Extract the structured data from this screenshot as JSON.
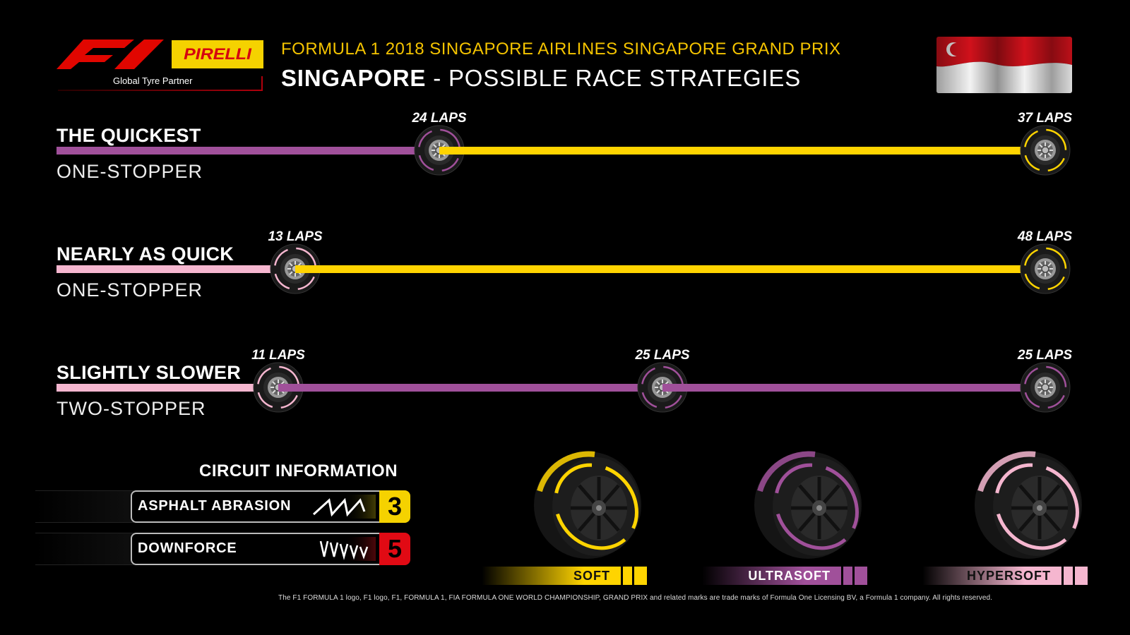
{
  "header": {
    "f1_logo": "f1-logo",
    "sponsor_logo_text": "PIRELLI",
    "partner_text": "Global Tyre Partner",
    "event_title": "FORMULA 1 2018 SINGAPORE AIRLINES SINGAPORE GRAND PRIX",
    "page_title_bold": "SINGAPORE",
    "page_title_rest": " - POSSIBLE RACE STRATEGIES",
    "flag": "singapore-flag"
  },
  "colors": {
    "soft": "#ffd400",
    "ultrasoft": "#a0509a",
    "hypersoft": "#f5b6cf",
    "abrasion_score": "#f5d200",
    "downforce_score": "#e10a14"
  },
  "strategies": [
    {
      "name": "THE QUICKEST",
      "type": "ONE-STOPPER",
      "stints": [
        {
          "compound": "ultrasoft",
          "laps": "24 LAPS"
        },
        {
          "compound": "soft",
          "laps": "37 LAPS"
        }
      ]
    },
    {
      "name": "NEARLY AS QUICK",
      "type": "ONE-STOPPER",
      "stints": [
        {
          "compound": "hypersoft",
          "laps": "13 LAPS"
        },
        {
          "compound": "soft",
          "laps": "48 LAPS"
        }
      ]
    },
    {
      "name": "SLIGHTLY SLOWER",
      "type": "TWO-STOPPER",
      "stints": [
        {
          "compound": "hypersoft",
          "laps": "11 LAPS"
        },
        {
          "compound": "ultrasoft",
          "laps": "25 LAPS"
        },
        {
          "compound": "ultrasoft",
          "laps": "25 LAPS"
        }
      ]
    }
  ],
  "circuit_info": {
    "heading": "CIRCUIT INFORMATION",
    "rows": [
      {
        "label": "ASPHALT ABRASION",
        "score": "3",
        "icon": "abrasion-icon"
      },
      {
        "label": "DOWNFORCE",
        "score": "5",
        "icon": "downforce-icon"
      }
    ]
  },
  "compounds": [
    {
      "label": "SOFT",
      "key": "soft"
    },
    {
      "label": "ULTRASOFT",
      "key": "ultrasoft"
    },
    {
      "label": "HYPERSOFT",
      "key": "hypersoft"
    }
  ],
  "legal": "The F1 FORMULA 1 logo, F1 logo, F1, FORMULA 1, FIA FORMULA ONE WORLD CHAMPIONSHIP, GRAND PRIX and related marks are trade marks of Formula One Licensing BV, a Formula 1 company. All rights reserved."
}
